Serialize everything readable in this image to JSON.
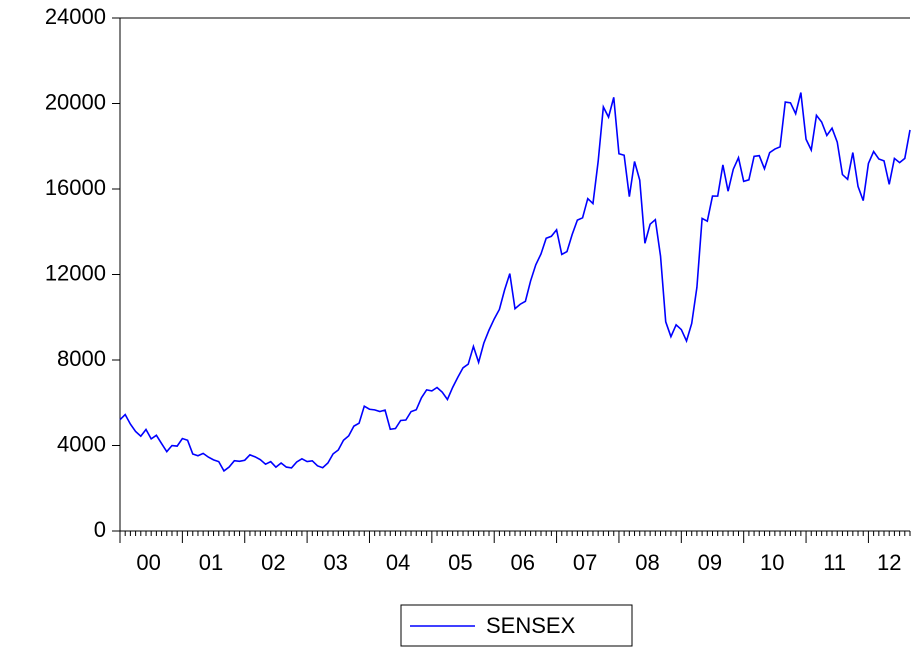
{
  "chart_data": {
    "type": "line",
    "categories": [
      "00",
      "01",
      "02",
      "03",
      "04",
      "05",
      "06",
      "07",
      "08",
      "09",
      "10",
      "11",
      "12"
    ],
    "series": [
      {
        "name": "SENSEX",
        "color": "#0000ff",
        "values": [
          [
            5206,
            5446,
            5001,
            4658,
            4434,
            4748,
            4311,
            4477,
            4091,
            3711,
            3998,
            3972
          ],
          [
            4326,
            4247,
            3604,
            3519,
            3632,
            3457,
            3329,
            3245,
            2812,
            2994,
            3287,
            3262
          ],
          [
            3311,
            3562,
            3469,
            3338,
            3125,
            3245,
            2988,
            3181,
            2991,
            2950,
            3229,
            3377
          ],
          [
            3250,
            3283,
            3049,
            2960,
            3180,
            3607,
            3792,
            4244,
            4453,
            4906,
            5044,
            5839
          ],
          [
            5696,
            5667,
            5591,
            5655,
            4760,
            4795,
            5170,
            5192,
            5584,
            5672,
            6234,
            6603
          ],
          [
            6556,
            6714,
            6493,
            6154,
            6715,
            7194,
            7635,
            7805,
            8634,
            7892,
            8789,
            9398
          ],
          [
            9920,
            10370,
            11280,
            12043,
            10399,
            10609,
            10744,
            11699,
            12454,
            12962,
            13697,
            13787
          ],
          [
            14091,
            12938,
            13072,
            13872,
            14544,
            14651,
            15551,
            15319,
            17291,
            19838,
            19363,
            20287
          ],
          [
            17649,
            17579,
            15644,
            17287,
            16416,
            13462,
            14356,
            14565,
            12860,
            9788,
            9093,
            9647
          ],
          [
            9424,
            8892,
            9709,
            11403,
            14625,
            14494,
            15670,
            15667,
            17127,
            15896,
            16926,
            17465
          ],
          [
            16358,
            16430,
            17528,
            17559,
            16945,
            17701,
            17868,
            17971,
            20069,
            20032,
            19521,
            20509
          ],
          [
            18328,
            17823,
            19445,
            19136,
            18503,
            18846,
            18197,
            16677,
            16454,
            17705,
            16123,
            15455
          ],
          [
            17194,
            17753,
            17404,
            17319,
            16219,
            17430,
            17236,
            17430,
            18763
          ]
        ]
      }
    ],
    "ylim": [
      0,
      24000
    ],
    "yticks": [
      0,
      4000,
      8000,
      12000,
      16000,
      20000,
      24000
    ],
    "legend": "bottom"
  }
}
